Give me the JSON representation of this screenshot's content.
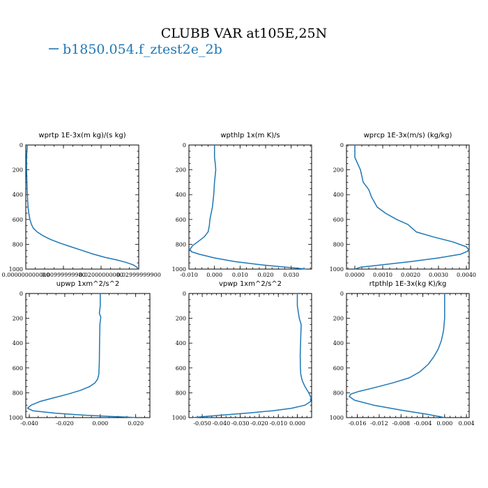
{
  "figure": {
    "title": "CLUBB VAR at105E,25N",
    "legend_label": "b1850.054.f_ztest2e_2b",
    "line_color": "#1f77b4"
  },
  "chart_data": [
    {
      "type": "line",
      "title": "wprtp  1E-3x(m kg)/(s kg)",
      "xlim": [
        0.0,
        0.03
      ],
      "ylim": [
        1000,
        0
      ],
      "x_ticks": [
        0.0,
        0.01,
        0.02,
        0.03
      ],
      "x_tick_labels": [
        "0.000000000000",
        "0.00999999980",
        "0.02000000000",
        "0.02999999900"
      ],
      "y_ticks": [
        0,
        200,
        400,
        600,
        800,
        1000
      ],
      "y_tick_labels": [
        "0",
        "200",
        "400",
        "600",
        "800",
        "1000"
      ],
      "series": [
        {
          "x": [
            0.0004,
            0.0002,
            0.0002,
            0.0003,
            0.0004,
            0.0005,
            0.0006,
            0.0008,
            0.0011,
            0.0015,
            0.002,
            0.003,
            0.0045,
            0.0065,
            0.009,
            0.012,
            0.015,
            0.018,
            0.021,
            0.024,
            0.0265,
            0.0285,
            0.0295,
            0.0298
          ],
          "y": [
            0,
            100,
            200,
            300,
            400,
            450,
            500,
            550,
            600,
            640,
            670,
            700,
            730,
            760,
            790,
            820,
            850,
            880,
            905,
            925,
            945,
            965,
            985,
            1000
          ]
        }
      ]
    },
    {
      "type": "line",
      "title": "wpthlp  1x(m K)/s",
      "xlim": [
        -0.01,
        0.038
      ],
      "ylim": [
        1000,
        0
      ],
      "x_ticks": [
        -0.01,
        0.0,
        0.01,
        0.02,
        0.03
      ],
      "x_tick_labels": [
        "-0.010",
        "0.000",
        "0.010",
        "0.020",
        "0.030"
      ],
      "y_ticks": [
        0,
        200,
        400,
        600,
        800,
        1000
      ],
      "y_tick_labels": [
        "0",
        "200",
        "400",
        "600",
        "800",
        "1000"
      ],
      "series": [
        {
          "x": [
            0.0,
            0.0,
            0.0003,
            0.0005,
            0.0,
            -0.0003,
            -0.0008,
            -0.0013,
            -0.0018,
            -0.002,
            -0.0025,
            -0.004,
            -0.0065,
            -0.0085,
            -0.0096,
            -0.009,
            -0.006,
            0.0,
            0.008,
            0.018,
            0.028,
            0.036
          ],
          "y": [
            0,
            100,
            150,
            200,
            300,
            400,
            500,
            550,
            600,
            650,
            700,
            740,
            780,
            810,
            840,
            860,
            880,
            910,
            940,
            965,
            985,
            1000
          ]
        }
      ]
    },
    {
      "type": "line",
      "title": "wprcp  1E-3x(m/s) (kg/kg)",
      "xlim": [
        -0.0003,
        0.0041
      ],
      "ylim": [
        1000,
        0
      ],
      "x_ticks": [
        0.0,
        0.001,
        0.002,
        0.003,
        0.004
      ],
      "x_tick_labels": [
        "0.0000",
        "0.0010",
        "0.0020",
        "0.0030",
        "0.0040"
      ],
      "y_ticks": [
        0,
        200,
        400,
        600,
        800,
        1000
      ],
      "y_tick_labels": [
        "0",
        "200",
        "400",
        "600",
        "800",
        "1000"
      ],
      "series": [
        {
          "x": [
            0.0,
            0.0,
            0.0001,
            0.0002,
            0.0003,
            0.0004,
            0.0005,
            0.0006,
            0.0008,
            0.0011,
            0.0015,
            0.0019,
            0.0022,
            0.0028,
            0.0035,
            0.004,
            0.0041,
            0.0038,
            0.003,
            0.002,
            0.001,
            0.0002,
            0.0
          ],
          "y": [
            0,
            100,
            150,
            200,
            300,
            330,
            360,
            420,
            500,
            550,
            600,
            640,
            700,
            740,
            780,
            820,
            850,
            880,
            910,
            940,
            965,
            985,
            1000
          ]
        }
      ]
    },
    {
      "type": "line",
      "title": "upwp  1xm^2/s^2",
      "xlim": [
        -0.042,
        0.028
      ],
      "ylim": [
        1000,
        0
      ],
      "x_ticks": [
        -0.04,
        -0.02,
        0.0,
        0.02
      ],
      "x_tick_labels": [
        "-0.040",
        "-0.020",
        "0.000",
        "0.020"
      ],
      "y_ticks": [
        0,
        200,
        400,
        600,
        800,
        1000
      ],
      "y_tick_labels": [
        "0",
        "200",
        "400",
        "600",
        "800",
        "1000"
      ],
      "series": [
        {
          "x": [
            0.0,
            0.0,
            -0.0005,
            0.0003,
            -0.0002,
            -0.0004,
            -0.0005,
            -0.0008,
            -0.0015,
            -0.003,
            -0.006,
            -0.011,
            -0.018,
            -0.026,
            -0.034,
            -0.039,
            -0.041,
            -0.038,
            -0.025,
            -0.01,
            0.005,
            0.015,
            0.02
          ],
          "y": [
            0,
            100,
            160,
            190,
            250,
            400,
            550,
            650,
            690,
            720,
            750,
            780,
            810,
            840,
            870,
            900,
            925,
            945,
            965,
            980,
            990,
            996,
            1000
          ]
        }
      ]
    },
    {
      "type": "line",
      "title": "vpwp  1xm^2/s^2",
      "xlim": [
        -0.057,
        0.0075
      ],
      "ylim": [
        1000,
        0
      ],
      "x_ticks": [
        -0.05,
        -0.04,
        -0.03,
        -0.02,
        -0.01,
        0.0
      ],
      "x_tick_labels": [
        "-0.050",
        "-0.040",
        "-0.030",
        "-0.020",
        "-0.010",
        "0.000"
      ],
      "y_ticks": [
        0,
        200,
        400,
        600,
        800,
        1000
      ],
      "y_tick_labels": [
        "0",
        "200",
        "400",
        "600",
        "800",
        "1000"
      ],
      "series": [
        {
          "x": [
            0.0,
            0.0,
            0.0005,
            0.001,
            0.002,
            0.0018,
            0.0015,
            0.0016,
            0.0018,
            0.0025,
            0.004,
            0.006,
            0.0072,
            0.007,
            0.004,
            -0.003,
            -0.013,
            -0.025,
            -0.037,
            -0.048,
            -0.055
          ],
          "y": [
            0,
            100,
            150,
            200,
            250,
            350,
            500,
            600,
            650,
            700,
            750,
            800,
            840,
            870,
            900,
            925,
            945,
            962,
            977,
            990,
            1000
          ]
        }
      ]
    },
    {
      "type": "line",
      "title": "rtpthlp  1E-3x(kg K)/kg",
      "xlim": [
        -0.018,
        0.0045
      ],
      "ylim": [
        1000,
        0
      ],
      "x_ticks": [
        -0.016,
        -0.012,
        -0.008,
        -0.004,
        0.0,
        0.004
      ],
      "x_tick_labels": [
        "-0.016",
        "-0.012",
        "-0.008",
        "-0.004",
        "0.000",
        "0.004"
      ],
      "y_ticks": [
        0,
        200,
        400,
        600,
        800,
        1000
      ],
      "y_tick_labels": [
        "0",
        "200",
        "400",
        "600",
        "800",
        "1000"
      ],
      "series": [
        {
          "x": [
            0.0,
            0.0,
            -0.0002,
            -0.0006,
            -0.0012,
            -0.002,
            -0.003,
            -0.0045,
            -0.0065,
            -0.0095,
            -0.013,
            -0.0158,
            -0.0172,
            -0.0175,
            -0.0165,
            -0.013,
            -0.008,
            -0.003,
            0.0
          ],
          "y": [
            0,
            200,
            300,
            380,
            450,
            510,
            570,
            630,
            680,
            720,
            760,
            790,
            810,
            830,
            860,
            900,
            940,
            975,
            1000
          ]
        }
      ]
    }
  ]
}
